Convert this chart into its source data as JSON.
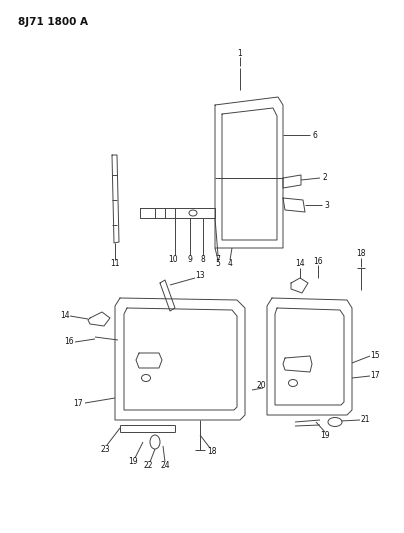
{
  "title": "8J71 1800 A",
  "bg_color": "#ffffff",
  "fig_size": [
    4.04,
    5.33
  ],
  "dpi": 100,
  "line_color": "#444444",
  "label_color": "#111111",
  "lw": 0.7,
  "fs": 5.5
}
